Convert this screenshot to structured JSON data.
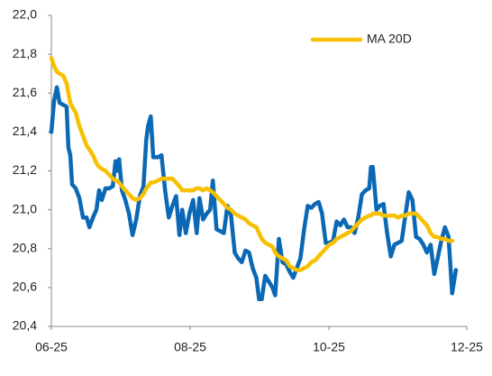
{
  "chart_data": {
    "type": "line",
    "x": [
      0,
      1.2,
      2.4,
      3.6,
      5.2,
      6.7,
      7.5,
      8.3,
      9.1,
      10.7,
      12.3,
      13.9,
      15.5,
      16.7,
      18.3,
      19.8,
      21.0,
      22.2,
      23.8,
      25.4,
      27.0,
      28.2,
      29.0,
      29.8,
      31.0,
      32.5,
      34.1,
      35.7,
      37.3,
      38.9,
      40.5,
      41.7,
      42.5,
      43.7,
      44.8,
      46.8,
      48.4,
      50.0,
      51.6,
      53.2,
      54.8,
      56.3,
      57.5,
      59.1,
      60.7,
      62.3,
      63.9,
      65.1,
      66.7,
      68.3,
      69.8,
      71.0,
      72.6,
      74.2,
      75.8,
      77.4,
      79.0,
      80.6,
      82.1,
      83.7,
      85.3,
      86.9,
      88.5,
      90.1,
      91.3,
      92.5,
      94.0,
      95.6,
      97.2,
      98.4,
      100.0,
      101.6,
      103.2,
      104.8,
      106.3,
      107.9,
      109.5,
      111.1,
      112.7,
      114.3,
      115.9,
      117.5,
      119.0,
      120.6,
      122.2,
      123.8,
      125.4,
      127.0,
      128.6,
      130.2,
      131.7,
      133.3,
      134.9,
      136.5,
      138.1,
      139.7,
      140.5,
      141.3,
      142.9,
      144.4,
      146.0,
      147.6,
      149.2,
      150.8,
      152.4,
      154.0,
      155.6,
      157.1,
      158.7,
      160.3,
      161.9,
      163.5,
      165.1,
      166.7,
      168.3,
      169.8,
      171.4,
      173.0,
      174.6,
      176.2,
      177.8
    ],
    "series": [
      {
        "color": "#0a68b4",
        "values": [
          21.4,
          21.56,
          21.63,
          21.55,
          21.54,
          21.53,
          21.32,
          21.28,
          21.13,
          21.11,
          21.06,
          20.96,
          20.96,
          20.91,
          20.96,
          21.0,
          21.1,
          21.05,
          21.11,
          21.11,
          21.12,
          21.25,
          21.2,
          21.26,
          21.1,
          21.05,
          20.98,
          20.87,
          20.95,
          21.07,
          21.12,
          21.36,
          21.43,
          21.48,
          21.27,
          21.27,
          21.28,
          21.1,
          20.96,
          21.02,
          21.07,
          20.87,
          21.0,
          20.88,
          20.98,
          21.05,
          20.88,
          21.06,
          20.95,
          20.98,
          21.0,
          21.15,
          20.9,
          20.89,
          20.88,
          21.02,
          20.97,
          20.78,
          20.75,
          20.73,
          20.79,
          20.78,
          20.7,
          20.65,
          20.54,
          20.54,
          20.66,
          20.63,
          20.6,
          20.56,
          20.85,
          20.73,
          20.72,
          20.68,
          20.65,
          20.7,
          20.75,
          20.9,
          21.02,
          21.01,
          21.03,
          21.04,
          20.98,
          20.83,
          20.83,
          20.84,
          20.94,
          20.92,
          20.95,
          20.91,
          20.91,
          20.88,
          20.96,
          21.08,
          21.1,
          21.11,
          21.22,
          21.22,
          21.0,
          21.02,
          21.03,
          20.88,
          20.76,
          20.82,
          20.83,
          20.84,
          20.97,
          21.09,
          21.05,
          20.86,
          20.85,
          20.82,
          20.78,
          20.82,
          20.67,
          20.75,
          20.84,
          20.91,
          20.86,
          20.57,
          20.69
        ]
      },
      {
        "name": "MA 20D",
        "color": "#f7c000",
        "values": [
          21.78,
          21.74,
          21.71,
          21.7,
          21.69,
          21.65,
          21.6,
          21.55,
          21.53,
          21.5,
          21.43,
          21.38,
          21.33,
          21.31,
          21.28,
          21.24,
          21.22,
          21.21,
          21.2,
          21.18,
          21.16,
          21.15,
          21.15,
          21.14,
          21.12,
          21.1,
          21.08,
          21.06,
          21.05,
          21.06,
          21.08,
          21.11,
          21.12,
          21.14,
          21.14,
          21.15,
          21.16,
          21.16,
          21.16,
          21.16,
          21.14,
          21.12,
          21.1,
          21.1,
          21.1,
          21.1,
          21.11,
          21.11,
          21.1,
          21.11,
          21.1,
          21.09,
          21.07,
          21.05,
          21.03,
          21.01,
          21.0,
          20.98,
          20.97,
          20.96,
          20.95,
          20.93,
          20.92,
          20.91,
          20.88,
          20.85,
          20.83,
          20.82,
          20.81,
          20.78,
          20.76,
          20.75,
          20.74,
          20.71,
          20.7,
          20.69,
          20.69,
          20.7,
          20.71,
          20.73,
          20.74,
          20.76,
          20.78,
          20.8,
          20.82,
          20.83,
          20.85,
          20.86,
          20.87,
          20.88,
          20.89,
          20.91,
          20.93,
          20.95,
          20.96,
          20.97,
          20.97,
          20.98,
          20.98,
          20.98,
          20.97,
          20.97,
          20.97,
          20.97,
          20.96,
          20.97,
          20.97,
          20.98,
          20.98,
          20.98,
          20.96,
          20.94,
          20.92,
          20.88,
          20.86,
          20.86,
          20.85,
          20.85,
          20.84,
          20.84,
          null
        ]
      }
    ],
    "xlim": [
      0,
      182.6
    ],
    "xticks": [
      {
        "value": 0,
        "label": "06-25"
      },
      {
        "value": 61,
        "label": "08-25"
      },
      {
        "value": 122,
        "label": "10-25"
      },
      {
        "value": 182.6,
        "label": "12-25"
      }
    ],
    "ylim": [
      20.4,
      22.0
    ],
    "yticks": [
      {
        "value": 20.4,
        "label": "20,4"
      },
      {
        "value": 20.6,
        "label": "20,6"
      },
      {
        "value": 20.8,
        "label": "20,8"
      },
      {
        "value": 21.0,
        "label": "21,0"
      },
      {
        "value": 21.2,
        "label": "21,2"
      },
      {
        "value": 21.4,
        "label": "21,4"
      },
      {
        "value": 21.6,
        "label": "21,6"
      },
      {
        "value": 21.8,
        "label": "21,8"
      },
      {
        "value": 22.0,
        "label": "22,0"
      }
    ],
    "legend": "top-right"
  }
}
